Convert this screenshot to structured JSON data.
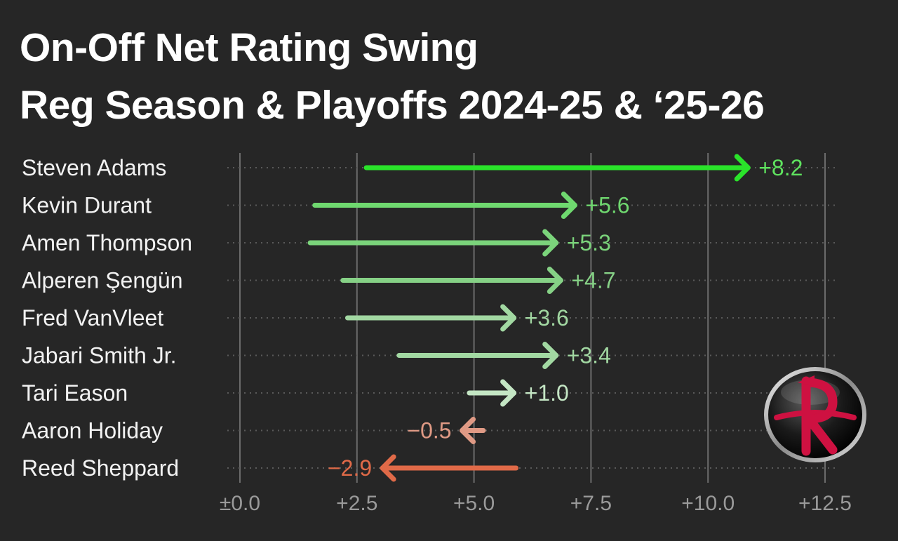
{
  "header": {
    "title_line1": "On-Off Net Rating Swing",
    "title_line2": "Reg Season & Playoffs 2024-25 & ‘25-26"
  },
  "logo": {
    "icon": "rockets-logo-icon",
    "letter": "R"
  },
  "colors": {
    "background": "#262626",
    "grid": "#6b6b6b",
    "label": "#f2f2f2",
    "tick": "#9a9a9a",
    "logo_red": "#ce1141"
  },
  "chart_data": {
    "type": "arrow",
    "title": "On-Off Net Rating Swing",
    "subtitle": "Reg Season & Playoffs 2024-25 & ‘25-26",
    "xlabel": "",
    "ylabel": "",
    "xlim": [
      0,
      12.5
    ],
    "xticks": [
      0,
      2.5,
      5.0,
      7.5,
      10.0,
      12.5
    ],
    "xtick_labels": [
      "±0.0",
      "+2.5",
      "+5.0",
      "+7.5",
      "+10.0",
      "+12.5"
    ],
    "grid": true,
    "series": [
      {
        "name": "Steven Adams",
        "start": 2.7,
        "end": 10.9,
        "swing": 8.2,
        "label": "+8.2",
        "color": "#2ae32a",
        "label_color": "#5fe35f"
      },
      {
        "name": "Kevin Durant",
        "start": 1.6,
        "end": 7.2,
        "swing": 5.6,
        "label": "+5.6",
        "color": "#6fd86f",
        "label_color": "#6fd86f"
      },
      {
        "name": "Amen Thompson",
        "start": 1.5,
        "end": 6.8,
        "swing": 5.3,
        "label": "+5.3",
        "color": "#7bd47b",
        "label_color": "#7bd47b"
      },
      {
        "name": "Alperen Şengün",
        "start": 2.2,
        "end": 6.9,
        "swing": 4.7,
        "label": "+4.7",
        "color": "#86d186",
        "label_color": "#86d186"
      },
      {
        "name": "Fred VanVleet",
        "start": 2.3,
        "end": 5.9,
        "swing": 3.6,
        "label": "+3.6",
        "color": "#a2d8a2",
        "label_color": "#a2d8a2"
      },
      {
        "name": "Jabari Smith Jr.",
        "start": 3.4,
        "end": 6.8,
        "swing": 3.4,
        "label": "+3.4",
        "color": "#a2d8a2",
        "label_color": "#a2d8a2"
      },
      {
        "name": "Tari Eason",
        "start": 4.9,
        "end": 5.9,
        "swing": 1.0,
        "label": "+1.0",
        "color": "#c4e6c4",
        "label_color": "#c4e6c4"
      },
      {
        "name": "Aaron Holiday",
        "start": 5.2,
        "end": 4.7,
        "swing": -0.5,
        "label": "−0.5",
        "color": "#e09a85",
        "label_color": "#e09a85"
      },
      {
        "name": "Reed Sheppard",
        "start": 5.9,
        "end": 3.0,
        "swing": -2.9,
        "label": "−2.9",
        "color": "#e06a48",
        "label_color": "#e06a48"
      }
    ]
  }
}
